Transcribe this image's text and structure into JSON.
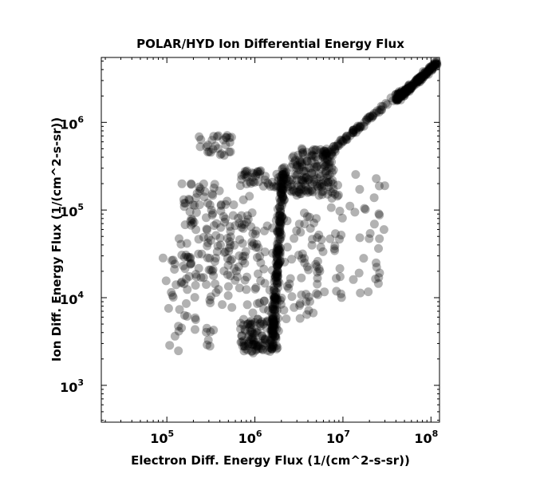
{
  "chart_data": {
    "type": "scatter",
    "title": "POLAR/HYD  Ion Differential Energy Flux",
    "xlabel": "Electron Diff. Energy Flux (1/(cm^2-s-sr))",
    "ylabel": "Ion Diff. Energy Flux (1/(cm^2-s-sr))",
    "xscale": "log",
    "yscale": "log",
    "xlim": [
      18000,
      125000000
    ],
    "ylim": [
      380,
      5500000
    ],
    "xticks": [
      {
        "value": 100000,
        "base": "10",
        "exp": "5"
      },
      {
        "value": 1000000,
        "base": "10",
        "exp": "6"
      },
      {
        "value": 10000000,
        "base": "10",
        "exp": "7"
      },
      {
        "value": 100000000,
        "base": "10",
        "exp": "8"
      }
    ],
    "yticks": [
      {
        "value": 1000,
        "base": "10",
        "exp": "3"
      },
      {
        "value": 10000,
        "base": "10",
        "exp": "4"
      },
      {
        "value": 100000,
        "base": "10",
        "exp": "5"
      },
      {
        "value": 1000000,
        "base": "10",
        "exp": "6"
      }
    ],
    "grid": false,
    "legend": "none",
    "marker_color": "#000000",
    "marker_opacity": 0.3,
    "clusters": [
      {
        "region": "main-vertical-stream",
        "x_range": [
          1300000,
          2400000
        ],
        "y_range": [
          2500,
          300000
        ],
        "points": 220,
        "spread": 0.08
      },
      {
        "region": "bottom-blob",
        "x_range": [
          700000,
          1800000
        ],
        "y_range": [
          2300,
          5500
        ],
        "points": 110,
        "spread": 0.12
      },
      {
        "region": "upper-dense-blob",
        "x_range": [
          2500000,
          8000000
        ],
        "y_range": [
          150000,
          500000
        ],
        "points": 160,
        "spread": 0.12
      },
      {
        "region": "upper-left-band",
        "x_range": [
          700000,
          2500000
        ],
        "y_range": [
          180000,
          280000
        ],
        "points": 50,
        "spread": 0.08
      },
      {
        "region": "upper-right-trail",
        "x_range": [
          40000000,
          125000000
        ],
        "y_range": [
          1800000,
          5000000
        ],
        "points": 180,
        "spread": 0.1
      },
      {
        "region": "diagonal-bridge",
        "x_range": [
          6000000,
          45000000
        ],
        "y_range": [
          400000,
          2200000
        ],
        "points": 90,
        "spread": 0.1
      },
      {
        "region": "isolated-top-left",
        "x_range": [
          230000,
          550000
        ],
        "y_range": [
          420000,
          720000
        ],
        "points": 28,
        "spread": 0.1
      },
      {
        "region": "left-sparse-cloud",
        "x_range": [
          150000,
          800000
        ],
        "y_range": [
          9000,
          240000
        ],
        "points": 130,
        "spread": 0.25
      },
      {
        "region": "mid-sparse-cloud",
        "x_range": [
          500000,
          5000000
        ],
        "y_range": [
          5000,
          100000
        ],
        "points": 120,
        "spread": 0.35
      },
      {
        "region": "right-sparse-cloud",
        "x_range": [
          4000000,
          30000000
        ],
        "y_range": [
          10000,
          250000
        ],
        "points": 70,
        "spread": 0.3
      },
      {
        "region": "far-left-sparse",
        "x_range": [
          100000,
          350000
        ],
        "y_range": [
          2200,
          30000
        ],
        "points": 45,
        "spread": 0.25
      }
    ]
  }
}
